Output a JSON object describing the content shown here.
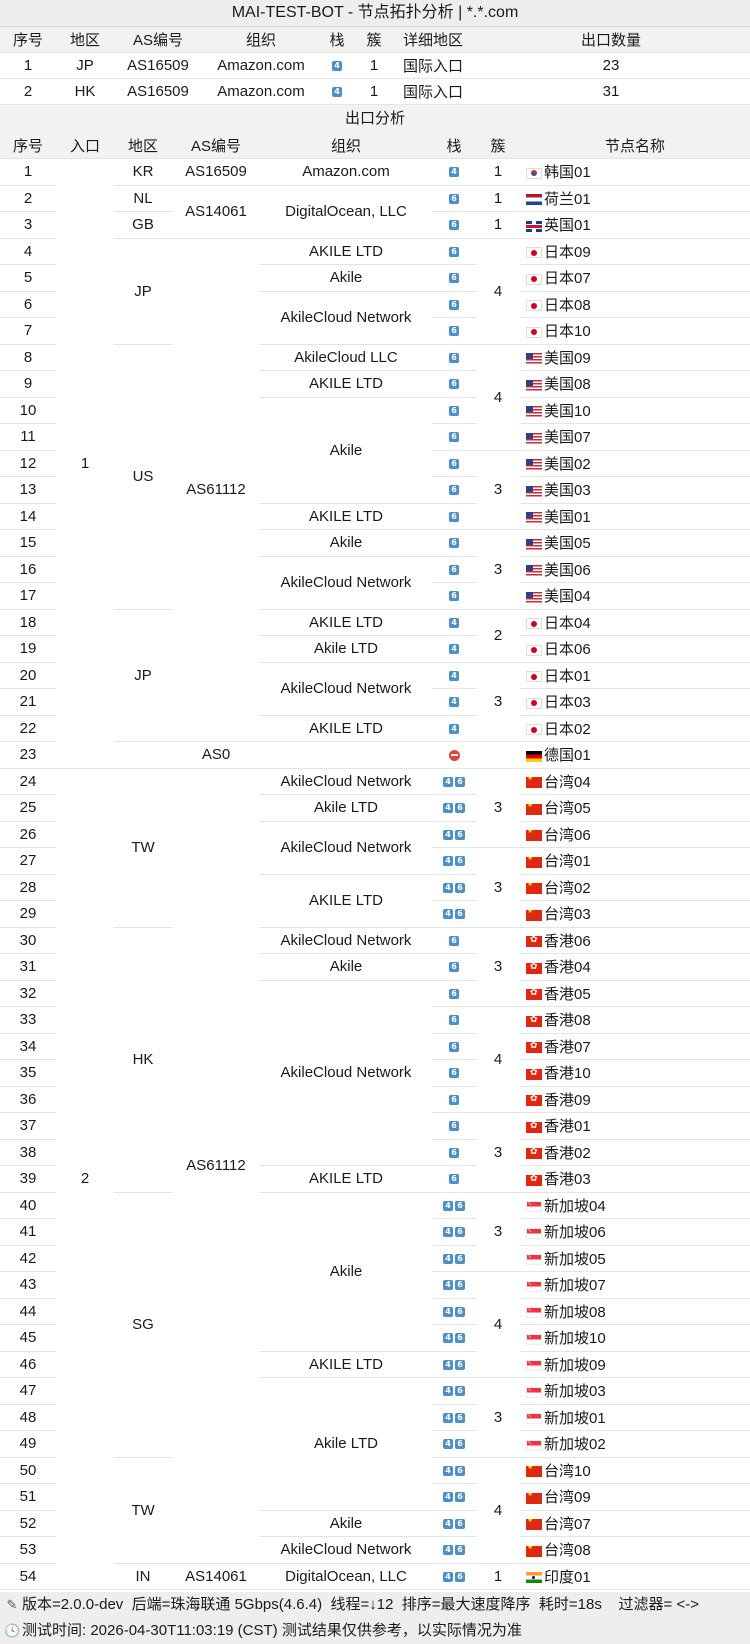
{
  "title": "MAI-TEST-BOT - 节点拓扑分析 | *.*.com",
  "entry_headers": [
    "序号",
    "地区",
    "AS编号",
    "组织",
    "栈",
    "簇",
    "详细地区",
    "出口数量"
  ],
  "entry_rows": [
    {
      "no": "1",
      "region": "JP",
      "asn": "AS16509",
      "org": "Amazon.com",
      "stack": [
        "4"
      ],
      "cluster": "1",
      "detail": "国际入口",
      "exit_count": "23"
    },
    {
      "no": "2",
      "region": "HK",
      "asn": "AS16509",
      "org": "Amazon.com",
      "stack": [
        "4"
      ],
      "cluster": "1",
      "detail": "国际入口",
      "exit_count": "31"
    }
  ],
  "exit_section_title": "出口分析",
  "exit_headers": [
    "序号",
    "入口",
    "地区",
    "AS编号",
    "组织",
    "栈",
    "簇",
    "节点名称"
  ],
  "exit_rows": [
    {
      "no": "1",
      "stack": [
        "4"
      ],
      "flag": "kr",
      "name": "韩国01"
    },
    {
      "no": "2",
      "stack": [
        "6"
      ],
      "flag": "nl",
      "name": "荷兰01"
    },
    {
      "no": "3",
      "stack": [
        "6"
      ],
      "flag": "gb",
      "name": "英国01"
    },
    {
      "no": "4",
      "stack": [
        "6"
      ],
      "flag": "jp",
      "name": "日本09"
    },
    {
      "no": "5",
      "stack": [
        "6"
      ],
      "flag": "jp",
      "name": "日本07"
    },
    {
      "no": "6",
      "stack": [
        "6"
      ],
      "flag": "jp",
      "name": "日本08"
    },
    {
      "no": "7",
      "stack": [
        "6"
      ],
      "flag": "jp",
      "name": "日本10"
    },
    {
      "no": "8",
      "stack": [
        "6"
      ],
      "flag": "us",
      "name": "美国09"
    },
    {
      "no": "9",
      "stack": [
        "6"
      ],
      "flag": "us",
      "name": "美国08"
    },
    {
      "no": "10",
      "stack": [
        "6"
      ],
      "flag": "us",
      "name": "美国10"
    },
    {
      "no": "11",
      "stack": [
        "6"
      ],
      "flag": "us",
      "name": "美国07"
    },
    {
      "no": "12",
      "stack": [
        "6"
      ],
      "flag": "us",
      "name": "美国02"
    },
    {
      "no": "13",
      "stack": [
        "6"
      ],
      "flag": "us",
      "name": "美国03"
    },
    {
      "no": "14",
      "stack": [
        "6"
      ],
      "flag": "us",
      "name": "美国01"
    },
    {
      "no": "15",
      "stack": [
        "6"
      ],
      "flag": "us",
      "name": "美国05"
    },
    {
      "no": "16",
      "stack": [
        "6"
      ],
      "flag": "us",
      "name": "美国06"
    },
    {
      "no": "17",
      "stack": [
        "6"
      ],
      "flag": "us",
      "name": "美国04"
    },
    {
      "no": "18",
      "stack": [
        "4"
      ],
      "flag": "jp",
      "name": "日本04"
    },
    {
      "no": "19",
      "stack": [
        "4"
      ],
      "flag": "jp",
      "name": "日本06"
    },
    {
      "no": "20",
      "stack": [
        "4"
      ],
      "flag": "jp",
      "name": "日本01"
    },
    {
      "no": "21",
      "stack": [
        "4"
      ],
      "flag": "jp",
      "name": "日本03"
    },
    {
      "no": "22",
      "stack": [
        "4"
      ],
      "flag": "jp",
      "name": "日本02"
    },
    {
      "no": "23",
      "stack": [
        "none"
      ],
      "flag": "de",
      "name": "德国01"
    },
    {
      "no": "24",
      "stack": [
        "4",
        "6"
      ],
      "flag": "cn",
      "name": "台湾04"
    },
    {
      "no": "25",
      "stack": [
        "4",
        "6"
      ],
      "flag": "cn",
      "name": "台湾05"
    },
    {
      "no": "26",
      "stack": [
        "4",
        "6"
      ],
      "flag": "cn",
      "name": "台湾06"
    },
    {
      "no": "27",
      "stack": [
        "4",
        "6"
      ],
      "flag": "cn",
      "name": "台湾01"
    },
    {
      "no": "28",
      "stack": [
        "4",
        "6"
      ],
      "flag": "cn",
      "name": "台湾02"
    },
    {
      "no": "29",
      "stack": [
        "4",
        "6"
      ],
      "flag": "cn",
      "name": "台湾03"
    },
    {
      "no": "30",
      "stack": [
        "6"
      ],
      "flag": "hk",
      "name": "香港06"
    },
    {
      "no": "31",
      "stack": [
        "6"
      ],
      "flag": "hk",
      "name": "香港04"
    },
    {
      "no": "32",
      "stack": [
        "6"
      ],
      "flag": "hk",
      "name": "香港05"
    },
    {
      "no": "33",
      "stack": [
        "6"
      ],
      "flag": "hk",
      "name": "香港08"
    },
    {
      "no": "34",
      "stack": [
        "6"
      ],
      "flag": "hk",
      "name": "香港07"
    },
    {
      "no": "35",
      "stack": [
        "6"
      ],
      "flag": "hk",
      "name": "香港10"
    },
    {
      "no": "36",
      "stack": [
        "6"
      ],
      "flag": "hk",
      "name": "香港09"
    },
    {
      "no": "37",
      "stack": [
        "6"
      ],
      "flag": "hk",
      "name": "香港01"
    },
    {
      "no": "38",
      "stack": [
        "6"
      ],
      "flag": "hk",
      "name": "香港02"
    },
    {
      "no": "39",
      "stack": [
        "6"
      ],
      "flag": "hk",
      "name": "香港03"
    },
    {
      "no": "40",
      "stack": [
        "4",
        "6"
      ],
      "flag": "sg",
      "name": "新加坡04"
    },
    {
      "no": "41",
      "stack": [
        "4",
        "6"
      ],
      "flag": "sg",
      "name": "新加坡06"
    },
    {
      "no": "42",
      "stack": [
        "4",
        "6"
      ],
      "flag": "sg",
      "name": "新加坡05"
    },
    {
      "no": "43",
      "stack": [
        "4",
        "6"
      ],
      "flag": "sg",
      "name": "新加坡07"
    },
    {
      "no": "44",
      "stack": [
        "4",
        "6"
      ],
      "flag": "sg",
      "name": "新加坡08"
    },
    {
      "no": "45",
      "stack": [
        "4",
        "6"
      ],
      "flag": "sg",
      "name": "新加坡10"
    },
    {
      "no": "46",
      "stack": [
        "4",
        "6"
      ],
      "flag": "sg",
      "name": "新加坡09"
    },
    {
      "no": "47",
      "stack": [
        "4",
        "6"
      ],
      "flag": "sg",
      "name": "新加坡03"
    },
    {
      "no": "48",
      "stack": [
        "4",
        "6"
      ],
      "flag": "sg",
      "name": "新加坡01"
    },
    {
      "no": "49",
      "stack": [
        "4",
        "6"
      ],
      "flag": "sg",
      "name": "新加坡02"
    },
    {
      "no": "50",
      "stack": [
        "4",
        "6"
      ],
      "flag": "cn",
      "name": "台湾10"
    },
    {
      "no": "51",
      "stack": [
        "4",
        "6"
      ],
      "flag": "cn",
      "name": "台湾09"
    },
    {
      "no": "52",
      "stack": [
        "4",
        "6"
      ],
      "flag": "cn",
      "name": "台湾07"
    },
    {
      "no": "53",
      "stack": [
        "4",
        "6"
      ],
      "flag": "cn",
      "name": "台湾08"
    },
    {
      "no": "54",
      "stack": [
        "4",
        "6"
      ],
      "flag": "in",
      "name": "印度01"
    }
  ],
  "exit_entry_groups": [
    {
      "value": "1",
      "start": 1,
      "span": 23
    },
    {
      "value": "2",
      "start": 24,
      "span": 31
    }
  ],
  "exit_region_groups": [
    {
      "value": "KR",
      "start": 1,
      "span": 1
    },
    {
      "value": "NL",
      "start": 2,
      "span": 1
    },
    {
      "value": "GB",
      "start": 3,
      "span": 1
    },
    {
      "value": "JP",
      "start": 4,
      "span": 4
    },
    {
      "value": "US",
      "start": 8,
      "span": 10
    },
    {
      "value": "JP",
      "start": 18,
      "span": 5
    },
    {
      "value": "",
      "start": 23,
      "span": 1
    },
    {
      "value": "TW",
      "start": 24,
      "span": 6
    },
    {
      "value": "HK",
      "start": 30,
      "span": 10
    },
    {
      "value": "SG",
      "start": 40,
      "span": 10
    },
    {
      "value": "TW",
      "start": 50,
      "span": 4
    },
    {
      "value": "IN",
      "start": 54,
      "span": 1
    }
  ],
  "exit_asn_groups": [
    {
      "value": "AS16509",
      "start": 1,
      "span": 1
    },
    {
      "value": "AS14061",
      "start": 2,
      "span": 2
    },
    {
      "value": "AS61112",
      "start": 4,
      "span": 19
    },
    {
      "value": "AS0",
      "start": 23,
      "span": 1
    },
    {
      "value": "AS61112",
      "start": 24,
      "span": 30
    },
    {
      "value": "AS14061",
      "start": 54,
      "span": 1
    }
  ],
  "exit_org_groups": [
    {
      "value": "Amazon.com",
      "start": 1,
      "span": 1
    },
    {
      "value": "DigitalOcean, LLC",
      "start": 2,
      "span": 2
    },
    {
      "value": "AKILE LTD",
      "start": 4,
      "span": 1
    },
    {
      "value": "Akile",
      "start": 5,
      "span": 1
    },
    {
      "value": "AkileCloud Network",
      "start": 6,
      "span": 2
    },
    {
      "value": "AkileCloud LLC",
      "start": 8,
      "span": 1
    },
    {
      "value": "AKILE LTD",
      "start": 9,
      "span": 1
    },
    {
      "value": "Akile",
      "start": 10,
      "span": 4
    },
    {
      "value": "AKILE LTD",
      "start": 14,
      "span": 1
    },
    {
      "value": "Akile",
      "start": 15,
      "span": 1
    },
    {
      "value": "AkileCloud Network",
      "start": 16,
      "span": 2
    },
    {
      "value": "AKILE LTD",
      "start": 18,
      "span": 1
    },
    {
      "value": "Akile LTD",
      "start": 19,
      "span": 1
    },
    {
      "value": "AkileCloud Network",
      "start": 20,
      "span": 2
    },
    {
      "value": "AKILE LTD",
      "start": 22,
      "span": 1
    },
    {
      "value": "",
      "start": 23,
      "span": 1
    },
    {
      "value": "AkileCloud Network",
      "start": 24,
      "span": 1
    },
    {
      "value": "Akile LTD",
      "start": 25,
      "span": 1
    },
    {
      "value": "AkileCloud Network",
      "start": 26,
      "span": 2
    },
    {
      "value": "AKILE LTD",
      "start": 28,
      "span": 2
    },
    {
      "value": "AkileCloud Network",
      "start": 30,
      "span": 1
    },
    {
      "value": "Akile",
      "start": 31,
      "span": 1
    },
    {
      "value": "AkileCloud Network",
      "start": 32,
      "span": 7
    },
    {
      "value": "AKILE LTD",
      "start": 39,
      "span": 1
    },
    {
      "value": "Akile",
      "start": 40,
      "span": 6
    },
    {
      "value": "AKILE LTD",
      "start": 46,
      "span": 1
    },
    {
      "value": "Akile LTD",
      "start": 47,
      "span": 5
    },
    {
      "value": "Akile",
      "start": 52,
      "span": 1
    },
    {
      "value": "AkileCloud Network",
      "start": 53,
      "span": 1
    },
    {
      "value": "DigitalOcean, LLC",
      "start": 54,
      "span": 1
    }
  ],
  "exit_cluster_groups": [
    {
      "value": "1",
      "start": 1,
      "span": 1
    },
    {
      "value": "1",
      "start": 2,
      "span": 1
    },
    {
      "value": "1",
      "start": 3,
      "span": 1
    },
    {
      "value": "4",
      "start": 4,
      "span": 4
    },
    {
      "value": "4",
      "start": 8,
      "span": 4
    },
    {
      "value": "3",
      "start": 12,
      "span": 3
    },
    {
      "value": "3",
      "start": 15,
      "span": 3
    },
    {
      "value": "2",
      "start": 18,
      "span": 2
    },
    {
      "value": "3",
      "start": 20,
      "span": 3
    },
    {
      "value": "",
      "start": 23,
      "span": 1
    },
    {
      "value": "3",
      "start": 24,
      "span": 3
    },
    {
      "value": "3",
      "start": 27,
      "span": 3
    },
    {
      "value": "3",
      "start": 30,
      "span": 3
    },
    {
      "value": "4",
      "start": 33,
      "span": 4
    },
    {
      "value": "3",
      "start": 37,
      "span": 3
    },
    {
      "value": "3",
      "start": 40,
      "span": 3
    },
    {
      "value": "4",
      "start": 43,
      "span": 4
    },
    {
      "value": "3",
      "start": 47,
      "span": 3
    },
    {
      "value": "4",
      "start": 50,
      "span": 4
    },
    {
      "value": "1",
      "start": 54,
      "span": 1
    }
  ],
  "footer": {
    "version": "版本=2.0.0-dev",
    "backend": "后端=珠海联通 5Gbps(4.6.4)",
    "threads": "线程=↓12",
    "sort": "排序=最大速度降序",
    "elapsed": "耗时=18s",
    "filter": "过滤器= <->",
    "test_time": "测试时间: 2026-04-30T11:03:19 (CST) 测试结果仅供参考，以实际情况为准"
  },
  "colors": {
    "stack_box": "#4e8fc6",
    "stack_none": "#e0443c",
    "header_bg": "#f2f2f2",
    "title_bg": "#eeeeee"
  }
}
